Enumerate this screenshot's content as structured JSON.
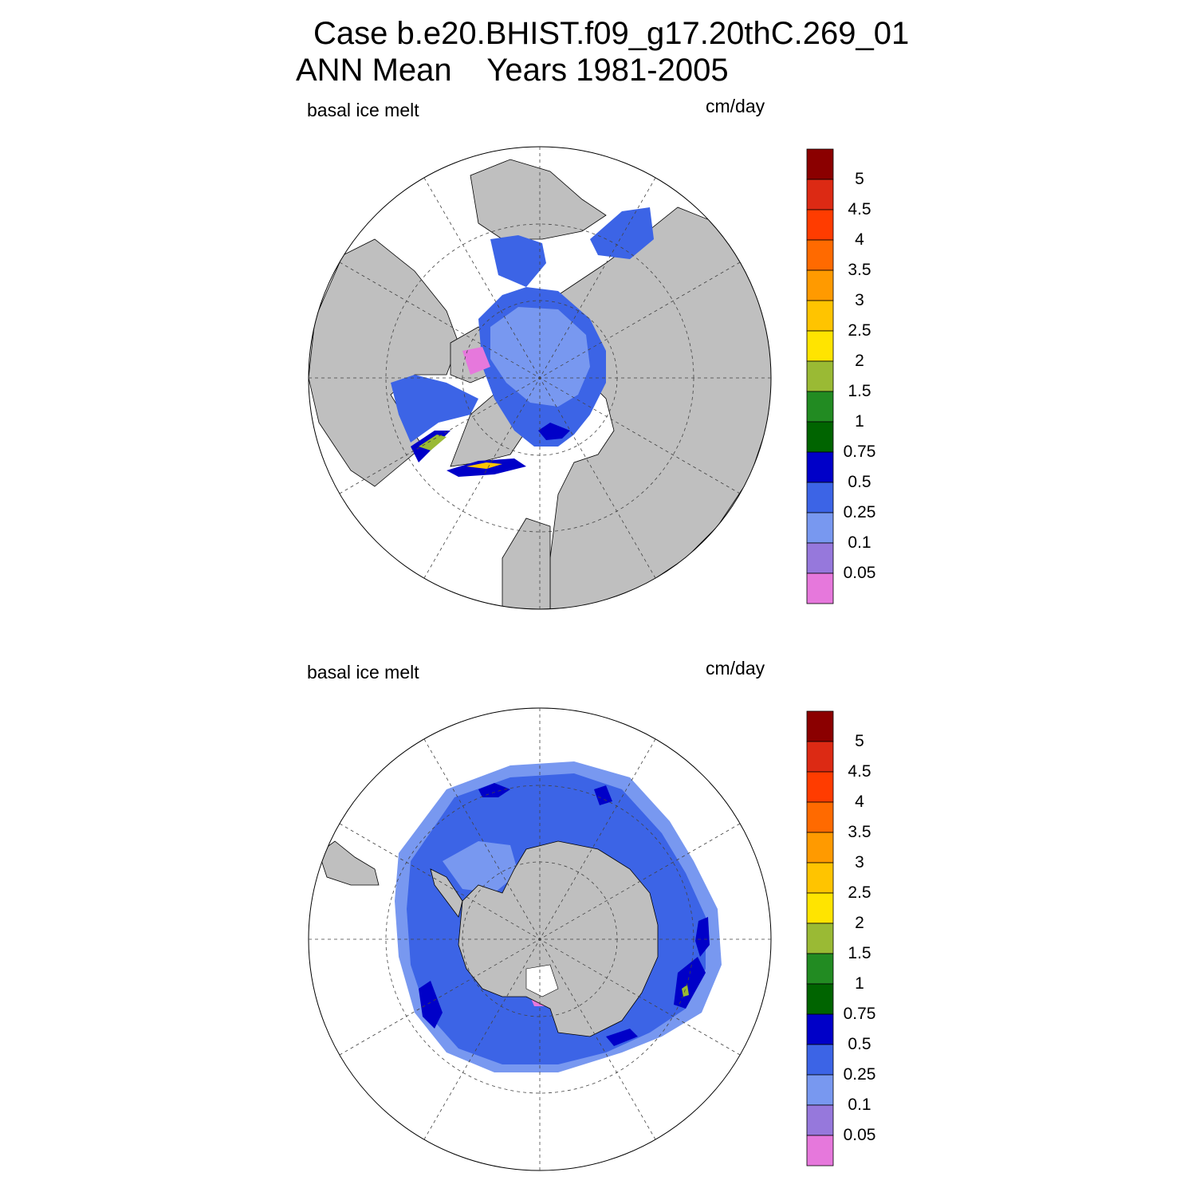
{
  "title": {
    "line1": "Case b.e20.BHIST.f09_g17.20thC.269_01",
    "line2": "ANN Mean    Years 1981-2005"
  },
  "colors": {
    "land": "#bfbfbf",
    "ocean_white": "#ffffff",
    "grid": "#444444"
  },
  "colorbar": {
    "labels": [
      "5",
      "4.5",
      "4",
      "3.5",
      "3",
      "2.5",
      "2",
      "1.5",
      "1",
      "0.75",
      "0.5",
      "0.25",
      "0.1",
      "0.05"
    ],
    "colors": [
      "#8b0000",
      "#dc2a14",
      "#ff3c00",
      "#ff6a00",
      "#ff9a00",
      "#ffc400",
      "#ffe400",
      "#9aba34",
      "#228b22",
      "#006400",
      "#0000c8",
      "#3c64e6",
      "#7898f0",
      "#9678dc",
      "#e678dc"
    ]
  },
  "panels": [
    {
      "id": "north",
      "left_label": "basal ice melt",
      "right_label": "cm/day",
      "hemisphere": "NH"
    },
    {
      "id": "south",
      "left_label": "basal ice melt",
      "right_label": "cm/day",
      "hemisphere": "SH"
    }
  ]
}
